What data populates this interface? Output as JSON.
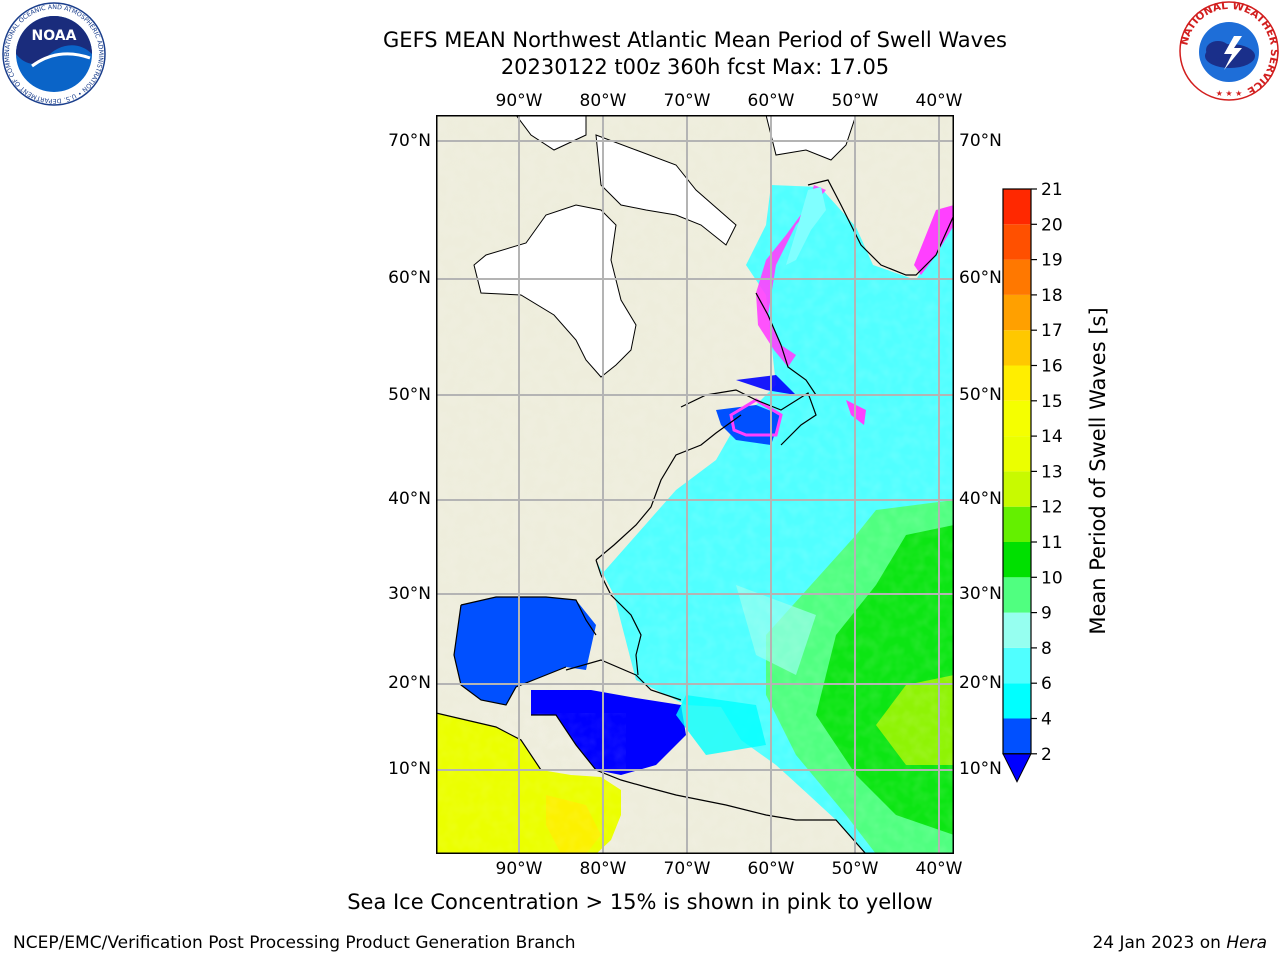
{
  "title": {
    "line1": "GEFS MEAN Northwest Atlantic Mean Period of Swell Waves",
    "line2": "20230122 t00z 360h fcst   Max: 17.05"
  },
  "map": {
    "lon_labels": [
      "90°W",
      "80°W",
      "70°W",
      "60°W",
      "50°W",
      "40°W"
    ],
    "lat_labels_left": [
      "70°N",
      "60°N",
      "50°N",
      "40°N",
      "30°N",
      "20°N",
      "10°N"
    ],
    "lat_labels_right": [
      "70°N",
      "60°N",
      "50°N",
      "40°N",
      "30°N",
      "20°N",
      "10°N"
    ],
    "extent": {
      "lon": [
        -100,
        -38.5
      ],
      "lat": [
        0,
        73
      ]
    },
    "colors": {
      "land": "#eeeddc",
      "ice_land": "#ffffff",
      "grid": "#b4b4b4",
      "coast": "#000000"
    }
  },
  "colorbar": {
    "title": "Mean Period of Swell Waves [s]",
    "ticks": [
      "2",
      "4",
      "6",
      "8",
      "9",
      "10",
      "11",
      "12",
      "13",
      "14",
      "15",
      "16",
      "17",
      "18",
      "19",
      "20",
      "21"
    ],
    "colors": [
      "#0050ff",
      "#00ffff",
      "#50ffff",
      "#96fff0",
      "#50ff80",
      "#00e000",
      "#64f000",
      "#c8fa00",
      "#ebff00",
      "#f5ff00",
      "#ffee00",
      "#ffc800",
      "#ffa000",
      "#ff7800",
      "#ff5000",
      "#ff2800",
      "#ff0000"
    ],
    "under_color": "#0000ff"
  },
  "footnote": "Sea Ice Concentration > 15% is shown in pink to yellow",
  "credit": "NCEP/EMC/Verification Post Processing Product Generation Branch",
  "run_date": {
    "text": "24 Jan 2023 on ",
    "machine": "Hera"
  },
  "logos": {
    "noaa": {
      "text": "NOAA",
      "ring": "NATIONAL OCEANIC AND ATMOSPHERIC ADMINISTRATION • U.S. DEPARTMENT OF COMMERCE •"
    },
    "nws": {
      "ring": "NATIONAL WEATHER SERVICE"
    }
  }
}
